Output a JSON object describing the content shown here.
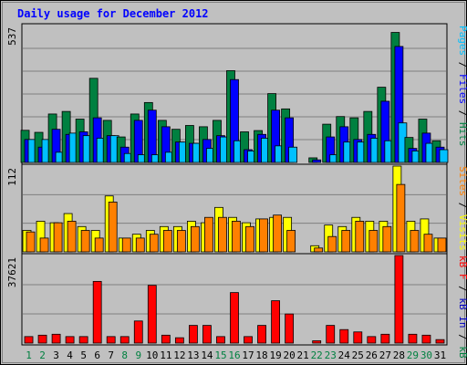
{
  "title": "Daily usage for December 2012",
  "colors": {
    "background": "#c0c0c0",
    "panel": "#c0c0c0",
    "grid": "#808080",
    "hits": "#008040",
    "files": "#0000ff",
    "pages": "#00c0ff",
    "visits": "#ffff00",
    "sites": "#ff8000",
    "kb_in": "#0000c0",
    "kb_out": "#008040",
    "kbf": "#ff0000",
    "title": "#0000ff",
    "weekday_label": "#000000",
    "weekend_label": "#008040"
  },
  "chart_data": [
    {
      "type": "bar",
      "panel": "top",
      "ymax_label": "537",
      "ylim": [
        0,
        537
      ],
      "grid": true,
      "right_labels": [
        {
          "text": "Pages",
          "color": "#00c0ff"
        },
        {
          "text": " / ",
          "color": "#000000"
        },
        {
          "text": "Files",
          "color": "#0000ff"
        },
        {
          "text": " / ",
          "color": "#000000"
        },
        {
          "text": "Hits",
          "color": "#008040"
        }
      ],
      "categories": [
        "1",
        "2",
        "3",
        "4",
        "5",
        "6",
        "7",
        "8",
        "9",
        "10",
        "11",
        "12",
        "13",
        "14",
        "15",
        "16",
        "17",
        "18",
        "19",
        "20",
        "21",
        "22",
        "23",
        "24",
        "25",
        "26",
        "27",
        "28",
        "29",
        "30",
        "31"
      ],
      "series": [
        {
          "name": "Hits",
          "color": "#008040",
          "values": [
            126,
            118,
            190,
            200,
            170,
            330,
            165,
            100,
            190,
            235,
            165,
            130,
            145,
            140,
            165,
            360,
            120,
            125,
            270,
            210,
            0,
            18,
            150,
            180,
            175,
            200,
            295,
            510,
            98,
            170,
            85
          ]
        },
        {
          "name": "Files",
          "color": "#0000ff",
          "values": [
            90,
            60,
            130,
            110,
            120,
            175,
            105,
            60,
            165,
            205,
            140,
            80,
            75,
            90,
            105,
            325,
            50,
            110,
            205,
            175,
            0,
            10,
            100,
            140,
            90,
            110,
            240,
            455,
            55,
            115,
            60
          ]
        },
        {
          "name": "Pages",
          "color": "#00c0ff",
          "values": [
            90,
            90,
            40,
            115,
            105,
            95,
            105,
            35,
            30,
            30,
            40,
            80,
            75,
            55,
            100,
            85,
            45,
            95,
            65,
            60,
            0,
            0,
            30,
            80,
            80,
            95,
            85,
            155,
            45,
            75,
            50
          ]
        }
      ]
    },
    {
      "type": "bar",
      "panel": "middle",
      "ymax_label": "112",
      "ylim": [
        0,
        112
      ],
      "grid": true,
      "right_labels": [
        {
          "text": "Sites",
          "color": "#ff8000"
        },
        {
          "text": " / ",
          "color": "#000000"
        },
        {
          "text": "Visits",
          "color": "#ffff00"
        }
      ],
      "categories": [
        "1",
        "2",
        "3",
        "4",
        "5",
        "6",
        "7",
        "8",
        "9",
        "10",
        "11",
        "12",
        "13",
        "14",
        "15",
        "16",
        "17",
        "18",
        "19",
        "20",
        "21",
        "22",
        "23",
        "24",
        "25",
        "26",
        "27",
        "28",
        "29",
        "30",
        "31"
      ],
      "series": [
        {
          "name": "Visits",
          "color": "#ffff00",
          "values": [
            28,
            40,
            38,
            50,
            33,
            28,
            73,
            18,
            23,
            28,
            33,
            33,
            40,
            38,
            58,
            45,
            38,
            43,
            45,
            45,
            0,
            8,
            35,
            33,
            45,
            40,
            40,
            112,
            40,
            43,
            18
          ]
        },
        {
          "name": "Sites",
          "color": "#ff8000",
          "values": [
            26,
            18,
            38,
            40,
            28,
            18,
            65,
            18,
            18,
            23,
            28,
            28,
            33,
            45,
            45,
            40,
            33,
            43,
            48,
            28,
            0,
            5,
            20,
            28,
            40,
            28,
            33,
            88,
            28,
            23,
            18
          ]
        }
      ]
    },
    {
      "type": "bar",
      "panel": "bottom",
      "ymax_label": "37621",
      "ylim": [
        0,
        37621
      ],
      "grid": true,
      "right_labels": [
        {
          "text": "kB F",
          "color": "#ff0000"
        },
        {
          "text": " / ",
          "color": "#000000"
        },
        {
          "text": "kB In",
          "color": "#0000c0"
        },
        {
          "text": " / ",
          "color": "#000000"
        },
        {
          "text": "kB Out",
          "color": "#008040"
        }
      ],
      "categories": [
        "1",
        "2",
        "3",
        "4",
        "5",
        "6",
        "7",
        "8",
        "9",
        "10",
        "11",
        "12",
        "13",
        "14",
        "15",
        "16",
        "17",
        "18",
        "19",
        "20",
        "21",
        "22",
        "23",
        "24",
        "25",
        "26",
        "27",
        "28",
        "29",
        "30",
        "31"
      ],
      "series": [
        {
          "name": "kB F",
          "color": "#ff0000",
          "values": [
            2800,
            3400,
            3800,
            2800,
            2800,
            26500,
            2800,
            2800,
            9500,
            24800,
            3400,
            2300,
            7600,
            7600,
            2800,
            21700,
            2800,
            7600,
            18200,
            12500,
            0,
            1000,
            7600,
            5800,
            4800,
            2800,
            3800,
            37621,
            3800,
            3400,
            1500
          ]
        }
      ]
    }
  ],
  "x_labels": {
    "days": [
      "1",
      "2",
      "3",
      "4",
      "5",
      "6",
      "7",
      "8",
      "9",
      "10",
      "11",
      "12",
      "13",
      "14",
      "15",
      "16",
      "17",
      "18",
      "19",
      "20",
      "21",
      "22",
      "23",
      "24",
      "25",
      "26",
      "27",
      "28",
      "29",
      "30",
      "31"
    ],
    "weekend_days": [
      1,
      2,
      8,
      9,
      15,
      16,
      22,
      23,
      29,
      30
    ]
  }
}
